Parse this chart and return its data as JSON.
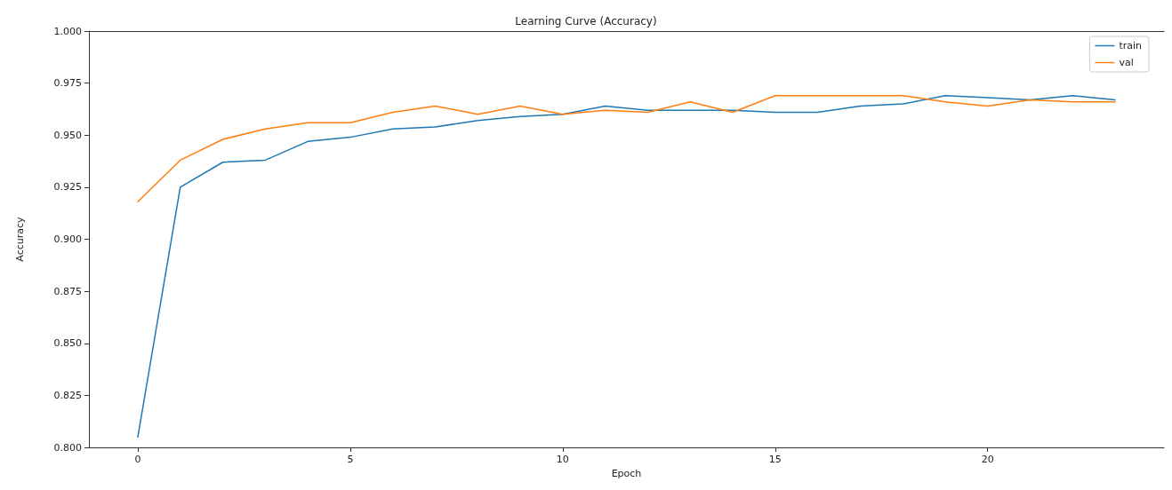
{
  "chart_data": {
    "type": "line",
    "title": "Learning Curve (Accuracy)",
    "xlabel": "Epoch",
    "ylabel": "Accuracy",
    "x": [
      0,
      1,
      2,
      3,
      4,
      5,
      6,
      7,
      8,
      9,
      10,
      11,
      12,
      13,
      14,
      15,
      16,
      17,
      18,
      19,
      20,
      21,
      22,
      23
    ],
    "series": [
      {
        "name": "train",
        "color": "#1f77b4",
        "values": [
          0.805,
          0.925,
          0.937,
          0.938,
          0.947,
          0.949,
          0.953,
          0.954,
          0.957,
          0.959,
          0.96,
          0.964,
          0.962,
          0.962,
          0.962,
          0.961,
          0.961,
          0.964,
          0.965,
          0.969,
          0.968,
          0.967,
          0.969,
          0.967
        ]
      },
      {
        "name": "val",
        "color": "#ff7f0e",
        "values": [
          0.918,
          0.938,
          0.948,
          0.953,
          0.956,
          0.956,
          0.961,
          0.964,
          0.96,
          0.964,
          0.96,
          0.962,
          0.961,
          0.966,
          0.961,
          0.969,
          0.969,
          0.969,
          0.969,
          0.966,
          0.964,
          0.967,
          0.966,
          0.966
        ]
      }
    ],
    "xlim": [
      -1.15,
      24.15
    ],
    "xticks": [
      0,
      5,
      10,
      15,
      20
    ],
    "ylim": [
      0.8,
      1.0
    ],
    "yticks": [
      {
        "value": 0.8,
        "label": "0.800"
      },
      0.825,
      {
        "value": 0.85,
        "label": "0.850"
      },
      0.875,
      {
        "value": 0.9,
        "label": "0.900"
      },
      0.925,
      {
        "value": 0.95,
        "label": "0.950"
      },
      0.975,
      {
        "value": 1.0,
        "label": "1.000"
      }
    ],
    "grid": false,
    "legend": "top right",
    "marker": "none",
    "line_style": "solid"
  }
}
